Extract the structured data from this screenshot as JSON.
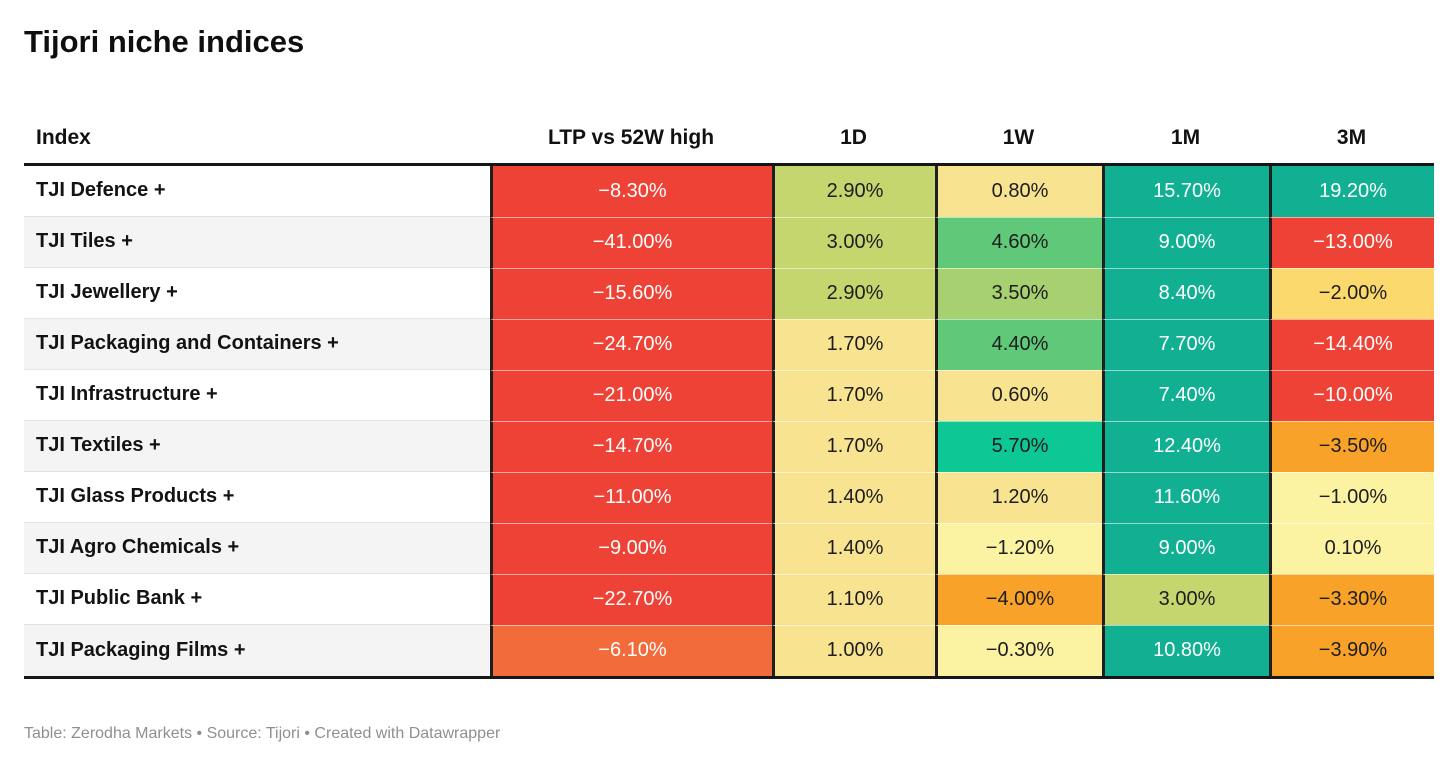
{
  "title": "Tijori niche indices",
  "footer": "Table: Zerodha Markets • Source: Tijori • Created with Datawrapper",
  "table": {
    "columns": {
      "index": "Index",
      "ltp": "LTP vs 52W high",
      "d1": "1D",
      "w1": "1W",
      "m1": "1M",
      "m3": "3M"
    },
    "rows": [
      {
        "index": "TJI Defence +",
        "cells": [
          {
            "value": "−8.30%",
            "bg": "#ee4237",
            "fg": "#ffffff"
          },
          {
            "value": "2.90%",
            "bg": "#c5d66f",
            "fg": "#1d1d1d"
          },
          {
            "value": "0.80%",
            "bg": "#f8e391",
            "fg": "#1d1d1d"
          },
          {
            "value": "15.70%",
            "bg": "#12b093",
            "fg": "#ffffff"
          },
          {
            "value": "19.20%",
            "bg": "#12b093",
            "fg": "#ffffff"
          }
        ]
      },
      {
        "index": "TJI Tiles +",
        "cells": [
          {
            "value": "−41.00%",
            "bg": "#ee4237",
            "fg": "#ffffff"
          },
          {
            "value": "3.00%",
            "bg": "#c5d66f",
            "fg": "#1d1d1d"
          },
          {
            "value": "4.60%",
            "bg": "#5fc979",
            "fg": "#1d1d1d"
          },
          {
            "value": "9.00%",
            "bg": "#12b093",
            "fg": "#ffffff"
          },
          {
            "value": "−13.00%",
            "bg": "#ee4237",
            "fg": "#ffffff"
          }
        ]
      },
      {
        "index": "TJI Jewellery +",
        "cells": [
          {
            "value": "−15.60%",
            "bg": "#ee4237",
            "fg": "#ffffff"
          },
          {
            "value": "2.90%",
            "bg": "#c5d66f",
            "fg": "#1d1d1d"
          },
          {
            "value": "3.50%",
            "bg": "#a7d070",
            "fg": "#1d1d1d"
          },
          {
            "value": "8.40%",
            "bg": "#12b093",
            "fg": "#ffffff"
          },
          {
            "value": "−2.00%",
            "bg": "#fbd96d",
            "fg": "#1d1d1d"
          }
        ]
      },
      {
        "index": "TJI Packaging and Containers +",
        "cells": [
          {
            "value": "−24.70%",
            "bg": "#ee4237",
            "fg": "#ffffff"
          },
          {
            "value": "1.70%",
            "bg": "#f8e391",
            "fg": "#1d1d1d"
          },
          {
            "value": "4.40%",
            "bg": "#5fc979",
            "fg": "#1d1d1d"
          },
          {
            "value": "7.70%",
            "bg": "#12b093",
            "fg": "#ffffff"
          },
          {
            "value": "−14.40%",
            "bg": "#ee4237",
            "fg": "#ffffff"
          }
        ]
      },
      {
        "index": "TJI Infrastructure +",
        "cells": [
          {
            "value": "−21.00%",
            "bg": "#ee4237",
            "fg": "#ffffff"
          },
          {
            "value": "1.70%",
            "bg": "#f8e391",
            "fg": "#1d1d1d"
          },
          {
            "value": "0.60%",
            "bg": "#f8e391",
            "fg": "#1d1d1d"
          },
          {
            "value": "7.40%",
            "bg": "#12b093",
            "fg": "#ffffff"
          },
          {
            "value": "−10.00%",
            "bg": "#ee4237",
            "fg": "#ffffff"
          }
        ]
      },
      {
        "index": "TJI Textiles +",
        "cells": [
          {
            "value": "−14.70%",
            "bg": "#ee4237",
            "fg": "#ffffff"
          },
          {
            "value": "1.70%",
            "bg": "#f8e391",
            "fg": "#1d1d1d"
          },
          {
            "value": "5.70%",
            "bg": "#0dc795",
            "fg": "#1d1d1d"
          },
          {
            "value": "12.40%",
            "bg": "#12b093",
            "fg": "#ffffff"
          },
          {
            "value": "−3.50%",
            "bg": "#f9a22a",
            "fg": "#1d1d1d"
          }
        ]
      },
      {
        "index": "TJI Glass Products +",
        "cells": [
          {
            "value": "−11.00%",
            "bg": "#ee4237",
            "fg": "#ffffff"
          },
          {
            "value": "1.40%",
            "bg": "#f8e391",
            "fg": "#1d1d1d"
          },
          {
            "value": "1.20%",
            "bg": "#f8e391",
            "fg": "#1d1d1d"
          },
          {
            "value": "11.60%",
            "bg": "#12b093",
            "fg": "#ffffff"
          },
          {
            "value": "−1.00%",
            "bg": "#fcf3a2",
            "fg": "#1d1d1d"
          }
        ]
      },
      {
        "index": "TJI Agro Chemicals +",
        "cells": [
          {
            "value": "−9.00%",
            "bg": "#ee4237",
            "fg": "#ffffff"
          },
          {
            "value": "1.40%",
            "bg": "#f8e391",
            "fg": "#1d1d1d"
          },
          {
            "value": "−1.20%",
            "bg": "#fcf3a2",
            "fg": "#1d1d1d"
          },
          {
            "value": "9.00%",
            "bg": "#12b093",
            "fg": "#ffffff"
          },
          {
            "value": "0.10%",
            "bg": "#fcf3a2",
            "fg": "#1d1d1d"
          }
        ]
      },
      {
        "index": "TJI Public Bank +",
        "cells": [
          {
            "value": "−22.70%",
            "bg": "#ee4237",
            "fg": "#ffffff"
          },
          {
            "value": "1.10%",
            "bg": "#f8e391",
            "fg": "#1d1d1d"
          },
          {
            "value": "−4.00%",
            "bg": "#f9a22a",
            "fg": "#1d1d1d"
          },
          {
            "value": "3.00%",
            "bg": "#c5d66f",
            "fg": "#1d1d1d"
          },
          {
            "value": "−3.30%",
            "bg": "#f9a22a",
            "fg": "#1d1d1d"
          }
        ]
      },
      {
        "index": "TJI Packaging Films +",
        "cells": [
          {
            "value": "−6.10%",
            "bg": "#f26b3a",
            "fg": "#ffffff"
          },
          {
            "value": "1.00%",
            "bg": "#f8e391",
            "fg": "#1d1d1d"
          },
          {
            "value": "−0.30%",
            "bg": "#fcf3a2",
            "fg": "#1d1d1d"
          },
          {
            "value": "10.80%",
            "bg": "#12b093",
            "fg": "#ffffff"
          },
          {
            "value": "−3.90%",
            "bg": "#f9a22a",
            "fg": "#1d1d1d"
          }
        ]
      }
    ]
  },
  "chart_data": {
    "type": "table",
    "title": "Tijori niche indices",
    "columns": [
      "Index",
      "LTP vs 52W high",
      "1D",
      "1W",
      "1M",
      "3M"
    ],
    "rows": [
      [
        "TJI Defence +",
        -8.3,
        2.9,
        0.8,
        15.7,
        19.2
      ],
      [
        "TJI Tiles +",
        -41.0,
        3.0,
        4.6,
        9.0,
        -13.0
      ],
      [
        "TJI Jewellery +",
        -15.6,
        2.9,
        3.5,
        8.4,
        -2.0
      ],
      [
        "TJI Packaging and Containers +",
        -24.7,
        1.7,
        4.4,
        7.7,
        -14.4
      ],
      [
        "TJI Infrastructure +",
        -21.0,
        1.7,
        0.6,
        7.4,
        -10.0
      ],
      [
        "TJI Textiles +",
        -14.7,
        1.7,
        5.7,
        12.4,
        -3.5
      ],
      [
        "TJI Glass Products +",
        -11.0,
        1.4,
        1.2,
        11.6,
        -1.0
      ],
      [
        "TJI Agro Chemicals +",
        -9.0,
        1.4,
        -1.2,
        9.0,
        0.1
      ],
      [
        "TJI Public Bank +",
        -22.7,
        1.1,
        -4.0,
        3.0,
        -3.3
      ],
      [
        "TJI Packaging Films +",
        -6.1,
        1.0,
        -0.3,
        10.8,
        -3.9
      ]
    ],
    "units": "percent",
    "layout": {
      "cell_coloring": "diverging red-yellow-teal heatmap",
      "grid": "dark column separators, bold top/bottom rules"
    }
  }
}
